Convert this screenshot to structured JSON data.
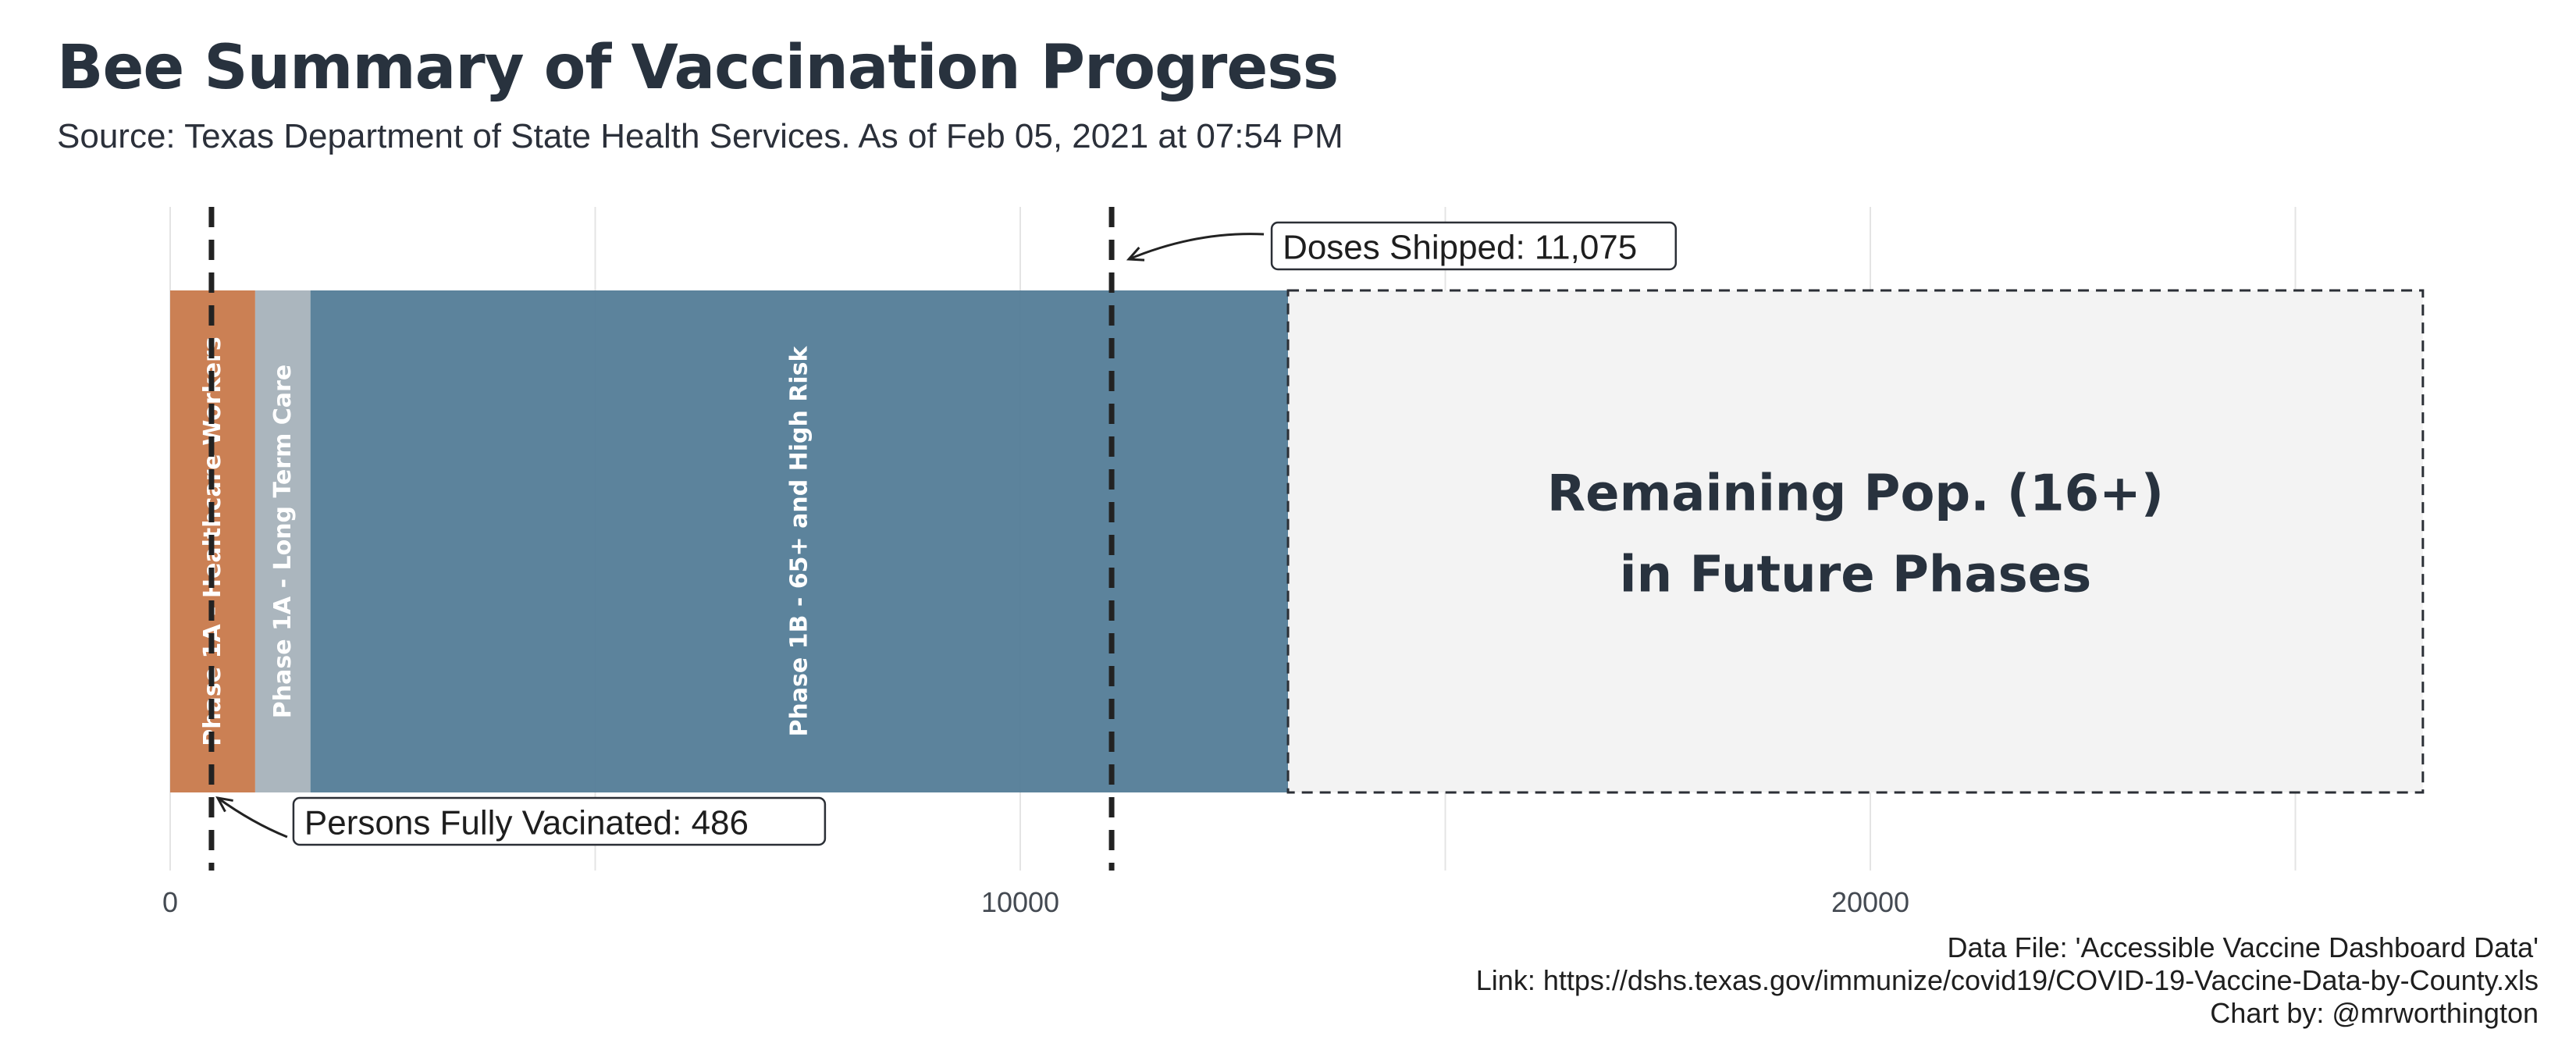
{
  "title": "Bee Summary of Vaccination Progress",
  "subtitle": "Source: Texas Department of State Health Services. As of Feb 05, 2021 at 07:54 PM",
  "caption": [
    "Data File: 'Accessible Vaccine Dashboard Data'",
    "Link: https://dshs.texas.gov/immunize/covid19/COVID-19-Vaccine-Data-by-County.xls",
    "Chart by: @mrworthington"
  ],
  "chart_data": {
    "type": "bar",
    "orientation": "horizontal-stacked",
    "x_ticks": [
      0,
      10000,
      20000
    ],
    "x_tick_labels": [
      "0",
      "10000",
      "20000"
    ],
    "xlim": [
      0,
      26700
    ],
    "grid": true,
    "segments": [
      {
        "label": "Phase 1A - Healthcare Workers",
        "start": 0,
        "end": 1000,
        "color": "#c8794b"
      },
      {
        "label": "Phase 1A - Long Term Care",
        "start": 1000,
        "end": 1650,
        "color": "#a7b2bb"
      },
      {
        "label": "Phase 1B - 65+ and High Risk",
        "start": 1650,
        "end": 13150,
        "color": "#537c97"
      },
      {
        "label": "Remaining Pop. (16+) in Future Phases",
        "start": 13150,
        "end": 26500,
        "color": "#f3f3f3",
        "dashed": true
      }
    ],
    "reference_lines": [
      {
        "label": "Doses Shipped: 11,075",
        "value": 11075
      },
      {
        "label": "Persons Fully Vacinated: 486",
        "value": 486
      }
    ]
  }
}
